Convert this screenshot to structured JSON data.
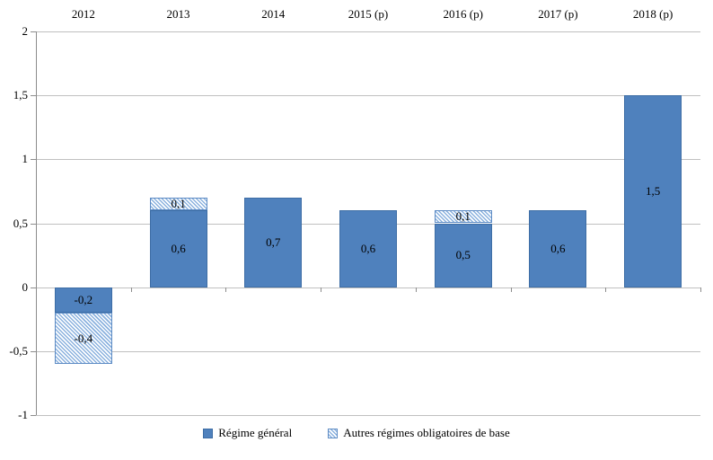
{
  "chart_data": {
    "type": "bar",
    "stacked": true,
    "title": "",
    "categories": [
      "2012",
      "2013",
      "2014",
      "2015 (p)",
      "2016 (p)",
      "2017 (p)",
      "2018 (p)"
    ],
    "series": [
      {
        "name": "Régime général",
        "style": "solid",
        "values": [
          -0.2,
          0.6,
          0.7,
          0.6,
          0.5,
          0.6,
          1.5
        ],
        "labels": [
          "-0,2",
          "0,6",
          "0,7",
          "0,6",
          "0,5",
          "0,6",
          "1,5"
        ]
      },
      {
        "name": "Autres régimes obligatoires de base",
        "style": "hatched",
        "values": [
          -0.4,
          0.1,
          0,
          0,
          0.1,
          0,
          0
        ],
        "labels": [
          "-0,4",
          "0,1",
          "",
          "",
          "0,1",
          "",
          ""
        ]
      }
    ],
    "ylim": [
      -1,
      2
    ],
    "ytick_values": [
      2,
      1.5,
      1,
      0.5,
      0,
      -0.5,
      -1
    ],
    "ytick_labels": [
      "2",
      "1,5",
      "1",
      "0,5",
      "0",
      "-0,5",
      "-1"
    ],
    "grid": true,
    "category_labels_position": "top",
    "legend_position": "bottom",
    "decimal_separator": ","
  },
  "colors": {
    "background": "#ffffff",
    "bar_solid_fill": "#4f81bd",
    "bar_solid_border": "#3d6da5",
    "hatch_stripe": "#8ab1de",
    "hatch_background": "#ffffff",
    "hatch_border": "#5d8bc4",
    "gridline": "#c0c0c0",
    "axis": "#8c8c8c",
    "text": "#000000"
  }
}
